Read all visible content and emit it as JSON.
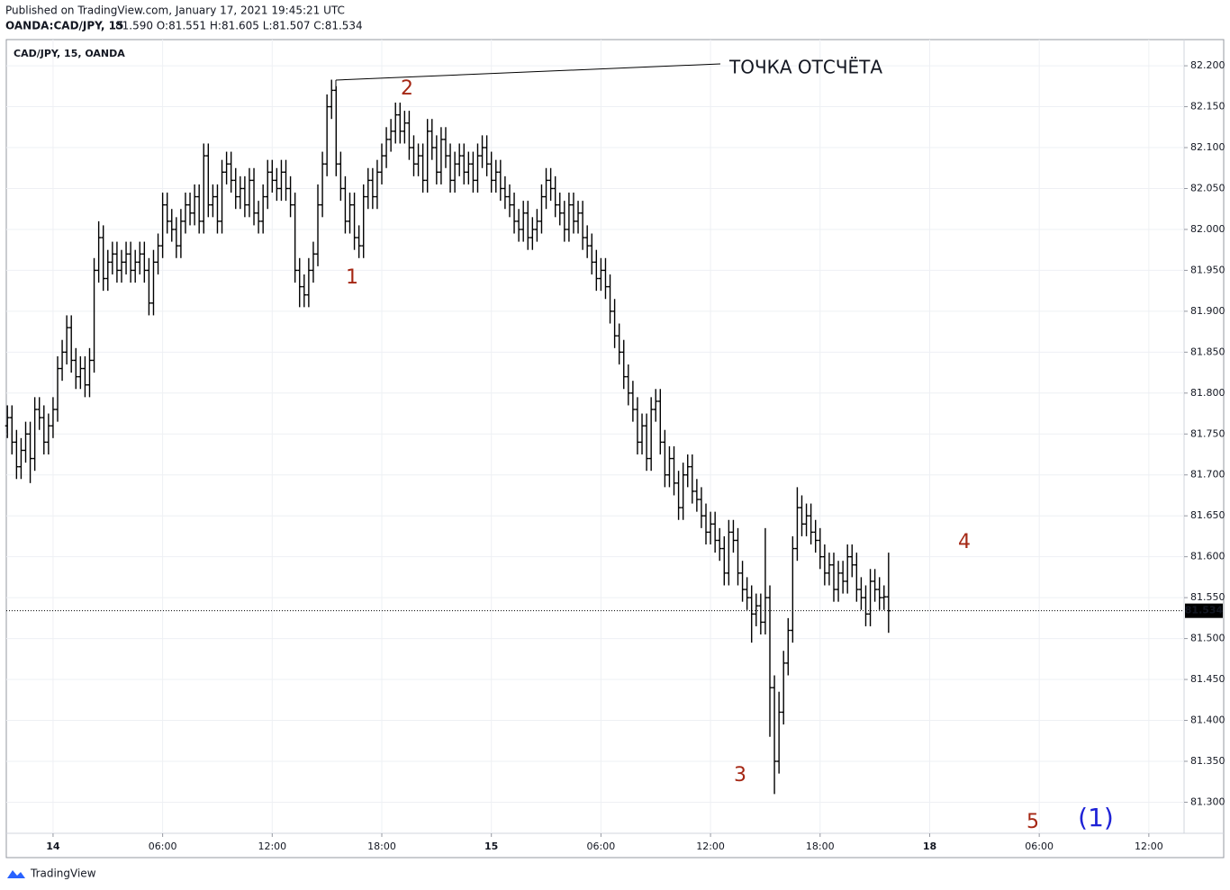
{
  "header": {
    "published": "Published on TradingView.com, January 17, 2021 19:45:21 UTC",
    "symbol": "OANDA:CAD/JPY, 15",
    "quote": "81.590 O:81.551 H:81.605 L:81.507 C:81.534"
  },
  "footer": {
    "brand": "TradingView"
  },
  "annotations": {
    "reference": "ТОЧКА ОТСЧЁТА",
    "w1": "1",
    "w2": "2",
    "w3": "3",
    "w4": "4",
    "w5": "5",
    "degree": "(1)"
  },
  "chart_data": {
    "type": "ohlc",
    "xlim": [
      -2.56,
      61.93
    ],
    "ylim": [
      81.262,
      82.232
    ],
    "xticks": [
      {
        "value": 0,
        "label": "14"
      },
      {
        "value": 6,
        "label": "06:00"
      },
      {
        "value": 12,
        "label": "12:00"
      },
      {
        "value": 18,
        "label": "18:00"
      },
      {
        "value": 24,
        "label": "15"
      },
      {
        "value": 30,
        "label": "06:00"
      },
      {
        "value": 36,
        "label": "12:00"
      },
      {
        "value": 42,
        "label": "18:00"
      },
      {
        "value": 48,
        "label": "18"
      },
      {
        "value": 54,
        "label": "06:00"
      },
      {
        "value": 60,
        "label": "12:00"
      }
    ],
    "yticks": [
      {
        "value": 81.3,
        "label": "81.300"
      },
      {
        "value": 81.35,
        "label": "81.350"
      },
      {
        "value": 81.4,
        "label": "81.400"
      },
      {
        "value": 81.45,
        "label": "81.450"
      },
      {
        "value": 81.5,
        "label": "81.500"
      },
      {
        "value": 81.55,
        "label": "81.550"
      },
      {
        "value": 81.6,
        "label": "81.600"
      },
      {
        "value": 81.65,
        "label": "81.650"
      },
      {
        "value": 81.7,
        "label": "81.700"
      },
      {
        "value": 81.75,
        "label": "81.750"
      },
      {
        "value": 81.8,
        "label": "81.800"
      },
      {
        "value": 81.85,
        "label": "81.850"
      },
      {
        "value": 81.9,
        "label": "81.900"
      },
      {
        "value": 81.95,
        "label": "81.950"
      },
      {
        "value": 82.0,
        "label": "82.000"
      },
      {
        "value": 82.05,
        "label": "82.050"
      },
      {
        "value": 82.1,
        "label": "82.100"
      },
      {
        "value": 82.15,
        "label": "82.150"
      },
      {
        "value": 82.2,
        "label": "82.200"
      }
    ],
    "grid": true,
    "last_price": 81.534,
    "x": [
      -2.5,
      -2.25,
      -2,
      -1.75,
      -1.5,
      -1.25,
      -1,
      -0.75,
      -0.5,
      -0.25,
      0,
      0.25,
      0.5,
      0.75,
      1,
      1.25,
      1.5,
      1.75,
      2,
      2.25,
      2.5,
      2.75,
      3,
      3.25,
      3.5,
      3.75,
      4,
      4.25,
      4.5,
      4.75,
      5,
      5.25,
      5.5,
      5.75,
      6,
      6.25,
      6.5,
      6.75,
      7,
      7.25,
      7.5,
      7.75,
      8,
      8.25,
      8.5,
      8.75,
      9,
      9.25,
      9.5,
      9.75,
      10,
      10.25,
      10.5,
      10.75,
      11,
      11.25,
      11.5,
      11.75,
      12,
      12.25,
      12.5,
      12.75,
      13,
      13.25,
      13.5,
      13.75,
      14,
      14.25,
      14.5,
      14.75,
      15,
      15.25,
      15.5,
      15.75,
      16,
      16.25,
      16.5,
      16.75,
      17,
      17.25,
      17.5,
      17.75,
      18,
      18.25,
      18.5,
      18.75,
      19,
      19.25,
      19.5,
      19.75,
      20,
      20.25,
      20.5,
      20.75,
      21,
      21.25,
      21.5,
      21.75,
      22,
      22.25,
      22.5,
      22.75,
      23,
      23.25,
      23.5,
      23.75,
      24,
      24.25,
      24.5,
      24.75,
      25,
      25.25,
      25.5,
      25.75,
      26,
      26.25,
      26.5,
      26.75,
      27,
      27.25,
      27.5,
      27.75,
      28,
      28.25,
      28.5,
      28.75,
      29,
      29.25,
      29.5,
      29.75,
      30,
      30.25,
      30.5,
      30.75,
      31,
      31.25,
      31.5,
      31.75,
      32,
      32.25,
      32.5,
      32.75,
      33,
      33.25,
      33.5,
      33.75,
      34,
      34.25,
      34.5,
      34.75,
      35,
      35.25,
      35.5,
      35.75,
      36,
      36.25,
      36.5,
      36.75,
      37,
      37.25,
      37.5,
      37.75,
      38,
      38.25,
      38.5,
      38.75,
      39,
      39.25,
      39.5,
      39.75,
      40,
      40.25,
      40.5,
      40.75,
      41,
      41.25,
      41.5,
      41.75,
      42,
      42.25,
      42.5,
      42.75,
      43,
      43.25,
      43.5,
      43.75,
      44,
      44.25,
      44.5,
      44.75,
      45,
      45.25,
      45.5,
      45.75
    ],
    "series": [
      {
        "name": "CAD/JPY, 15, OANDA",
        "color": "#000000",
        "open": [
          81.76,
          81.77,
          81.74,
          81.71,
          81.73,
          81.75,
          81.72,
          81.78,
          81.77,
          81.74,
          81.76,
          81.78,
          81.83,
          81.85,
          81.88,
          81.84,
          81.82,
          81.83,
          81.81,
          81.84,
          81.95,
          81.99,
          81.94,
          81.96,
          81.97,
          81.95,
          81.96,
          81.97,
          81.95,
          81.96,
          81.97,
          81.95,
          81.91,
          81.96,
          81.98,
          82.03,
          82.01,
          82.0,
          81.98,
          82.01,
          82.03,
          82.02,
          82.04,
          82.01,
          82.09,
          82.03,
          82.04,
          82.01,
          82.07,
          82.08,
          82.06,
          82.04,
          82.05,
          82.03,
          82.06,
          82.02,
          82.01,
          82.04,
          82.07,
          82.06,
          82.05,
          82.07,
          82.05,
          82.03,
          81.95,
          81.93,
          81.92,
          81.95,
          81.97,
          82.03,
          82.08,
          82.15,
          82.17,
          82.08,
          82.05,
          82.01,
          82.03,
          81.99,
          81.98,
          82.04,
          82.06,
          82.04,
          82.07,
          82.09,
          82.11,
          82.12,
          82.14,
          82.12,
          82.13,
          82.1,
          82.08,
          82.09,
          82.06,
          82.12,
          82.1,
          82.07,
          82.11,
          82.09,
          82.06,
          82.08,
          82.09,
          82.07,
          82.08,
          82.06,
          82.09,
          82.1,
          82.08,
          82.06,
          82.07,
          82.05,
          82.04,
          82.03,
          82.01,
          82.0,
          82.02,
          81.99,
          82.0,
          82.01,
          82.04,
          82.06,
          82.05,
          82.03,
          82.02,
          82.0,
          82.03,
          82.01,
          82.02,
          81.99,
          81.98,
          81.96,
          81.94,
          81.95,
          81.93,
          81.9,
          81.87,
          81.85,
          81.82,
          81.8,
          81.78,
          81.74,
          81.76,
          81.72,
          81.78,
          81.79,
          81.74,
          81.7,
          81.72,
          81.69,
          81.66,
          81.7,
          81.71,
          81.68,
          81.67,
          81.65,
          81.63,
          81.64,
          81.62,
          81.61,
          81.58,
          81.63,
          81.62,
          81.58,
          81.56,
          81.55,
          81.53,
          81.54,
          81.52,
          81.55,
          81.44,
          81.35,
          81.41,
          81.47,
          81.51,
          81.61,
          81.66,
          81.64,
          81.65,
          81.63,
          81.62,
          81.6,
          81.58,
          81.59,
          81.56,
          81.58,
          81.57,
          81.6,
          81.59,
          81.56,
          81.55,
          81.53,
          81.57,
          81.56,
          81.55,
          81.551
        ],
        "high": [
          81.785,
          81.785,
          81.755,
          81.745,
          81.765,
          81.765,
          81.795,
          81.795,
          81.785,
          81.775,
          81.795,
          81.845,
          81.865,
          81.895,
          81.895,
          81.855,
          81.845,
          81.845,
          81.855,
          81.965,
          82.01,
          82.005,
          81.975,
          81.985,
          81.985,
          81.975,
          81.985,
          81.985,
          81.975,
          81.985,
          81.985,
          81.965,
          81.975,
          81.995,
          82.045,
          82.045,
          82.025,
          82.015,
          82.025,
          82.045,
          82.045,
          82.055,
          82.055,
          82.105,
          82.105,
          82.055,
          82.055,
          82.085,
          82.095,
          82.095,
          82.075,
          82.065,
          82.065,
          82.075,
          82.075,
          82.035,
          82.055,
          82.085,
          82.085,
          82.075,
          82.085,
          82.085,
          82.065,
          82.045,
          81.965,
          81.945,
          81.965,
          81.985,
          82.055,
          82.095,
          82.165,
          82.183,
          82.175,
          82.095,
          82.065,
          82.045,
          82.045,
          82.005,
          82.055,
          82.075,
          82.075,
          82.085,
          82.105,
          82.125,
          82.135,
          82.155,
          82.155,
          82.145,
          82.145,
          82.115,
          82.105,
          82.105,
          82.135,
          82.135,
          82.115,
          82.125,
          82.125,
          82.105,
          82.095,
          82.105,
          82.105,
          82.095,
          82.095,
          82.105,
          82.115,
          82.115,
          82.095,
          82.085,
          82.085,
          82.065,
          82.055,
          82.045,
          82.025,
          82.035,
          82.035,
          82.015,
          82.025,
          82.055,
          82.075,
          82.075,
          82.065,
          82.045,
          82.035,
          82.045,
          82.045,
          82.035,
          82.035,
          82.005,
          81.995,
          81.975,
          81.965,
          81.965,
          81.945,
          81.915,
          81.885,
          81.865,
          81.835,
          81.815,
          81.795,
          81.775,
          81.775,
          81.795,
          81.805,
          81.805,
          81.755,
          81.735,
          81.735,
          81.705,
          81.715,
          81.725,
          81.725,
          81.695,
          81.685,
          81.665,
          81.655,
          81.655,
          81.635,
          81.625,
          81.645,
          81.645,
          81.635,
          81.595,
          81.575,
          81.565,
          81.555,
          81.555,
          81.635,
          81.565,
          81.455,
          81.435,
          81.485,
          81.525,
          81.625,
          81.685,
          81.675,
          81.665,
          81.665,
          81.645,
          81.635,
          81.615,
          81.605,
          81.605,
          81.595,
          81.595,
          81.615,
          81.615,
          81.605,
          81.575,
          81.565,
          81.585,
          81.585,
          81.575,
          81.565,
          81.605
        ],
        "low": [
          81.745,
          81.725,
          81.695,
          81.695,
          81.715,
          81.69,
          81.705,
          81.755,
          81.725,
          81.725,
          81.745,
          81.765,
          81.815,
          81.835,
          81.825,
          81.805,
          81.805,
          81.795,
          81.795,
          81.825,
          81.935,
          81.925,
          81.925,
          81.945,
          81.935,
          81.935,
          81.945,
          81.935,
          81.935,
          81.945,
          81.935,
          81.895,
          81.895,
          81.945,
          81.965,
          81.995,
          81.985,
          81.965,
          81.965,
          81.995,
          82.005,
          82.005,
          81.995,
          81.995,
          82.015,
          82.015,
          81.995,
          81.995,
          82.055,
          82.045,
          82.025,
          82.025,
          82.015,
          82.015,
          82.005,
          81.995,
          81.995,
          82.025,
          82.045,
          82.035,
          82.035,
          82.035,
          82.015,
          81.935,
          81.905,
          81.905,
          81.905,
          81.935,
          81.955,
          82.015,
          82.065,
          82.135,
          82.065,
          82.035,
          81.995,
          81.995,
          81.975,
          81.965,
          81.965,
          82.025,
          82.025,
          82.025,
          82.055,
          82.075,
          82.095,
          82.105,
          82.105,
          82.105,
          82.085,
          82.065,
          82.065,
          82.045,
          82.045,
          82.085,
          82.055,
          82.055,
          82.075,
          82.045,
          82.045,
          82.065,
          82.055,
          82.055,
          82.045,
          82.045,
          82.075,
          82.065,
          82.045,
          82.045,
          82.035,
          82.025,
          82.015,
          81.995,
          81.985,
          81.985,
          81.975,
          81.975,
          81.985,
          81.995,
          82.025,
          82.035,
          82.015,
          82.005,
          81.985,
          81.985,
          81.995,
          81.995,
          81.975,
          81.965,
          81.945,
          81.925,
          81.925,
          81.915,
          81.885,
          81.855,
          81.835,
          81.805,
          81.785,
          81.765,
          81.725,
          81.725,
          81.705,
          81.705,
          81.765,
          81.725,
          81.685,
          81.685,
          81.675,
          81.645,
          81.645,
          81.685,
          81.665,
          81.655,
          81.635,
          81.615,
          81.615,
          81.605,
          81.595,
          81.565,
          81.565,
          81.605,
          81.565,
          81.545,
          81.535,
          81.495,
          81.515,
          81.505,
          81.505,
          81.38,
          81.31,
          81.335,
          81.395,
          81.455,
          81.495,
          81.595,
          81.625,
          81.625,
          81.615,
          81.605,
          81.585,
          81.565,
          81.565,
          81.545,
          81.545,
          81.555,
          81.555,
          81.575,
          81.545,
          81.535,
          81.515,
          81.515,
          81.545,
          81.535,
          81.535,
          81.507
        ],
        "close": [
          81.77,
          81.74,
          81.71,
          81.73,
          81.75,
          81.72,
          81.78,
          81.77,
          81.74,
          81.76,
          81.78,
          81.83,
          81.85,
          81.88,
          81.84,
          81.82,
          81.83,
          81.81,
          81.84,
          81.95,
          81.99,
          81.94,
          81.96,
          81.97,
          81.95,
          81.96,
          81.97,
          81.95,
          81.96,
          81.97,
          81.95,
          81.91,
          81.96,
          81.98,
          82.03,
          82.01,
          82.0,
          81.98,
          82.01,
          82.03,
          82.02,
          82.04,
          82.01,
          82.09,
          82.03,
          82.04,
          82.01,
          82.07,
          82.08,
          82.06,
          82.04,
          82.05,
          82.03,
          82.06,
          82.02,
          82.01,
          82.04,
          82.07,
          82.06,
          82.05,
          82.07,
          82.05,
          82.03,
          81.95,
          81.93,
          81.92,
          81.95,
          81.97,
          82.03,
          82.08,
          82.15,
          82.17,
          82.08,
          82.05,
          82.01,
          82.03,
          81.99,
          81.98,
          82.04,
          82.06,
          82.04,
          82.07,
          82.09,
          82.11,
          82.12,
          82.14,
          82.12,
          82.13,
          82.1,
          82.08,
          82.09,
          82.06,
          82.12,
          82.1,
          82.07,
          82.11,
          82.09,
          82.06,
          82.08,
          82.09,
          82.07,
          82.08,
          82.06,
          82.09,
          82.1,
          82.08,
          82.06,
          82.07,
          82.05,
          82.04,
          82.03,
          82.01,
          82.0,
          82.02,
          81.99,
          82.0,
          82.01,
          82.04,
          82.06,
          82.05,
          82.03,
          82.02,
          82.0,
          82.03,
          82.01,
          82.02,
          81.99,
          81.98,
          81.96,
          81.94,
          81.95,
          81.93,
          81.9,
          81.87,
          81.85,
          81.82,
          81.8,
          81.78,
          81.74,
          81.76,
          81.72,
          81.78,
          81.79,
          81.74,
          81.7,
          81.72,
          81.69,
          81.66,
          81.7,
          81.71,
          81.68,
          81.67,
          81.65,
          81.63,
          81.64,
          81.62,
          81.61,
          81.58,
          81.63,
          81.62,
          81.58,
          81.56,
          81.55,
          81.53,
          81.54,
          81.52,
          81.55,
          81.44,
          81.35,
          81.41,
          81.47,
          81.51,
          81.61,
          81.66,
          81.64,
          81.65,
          81.63,
          81.62,
          81.6,
          81.58,
          81.59,
          81.56,
          81.58,
          81.57,
          81.6,
          81.59,
          81.56,
          81.55,
          81.53,
          81.57,
          81.56,
          81.55,
          81.551,
          81.534
        ]
      }
    ]
  }
}
